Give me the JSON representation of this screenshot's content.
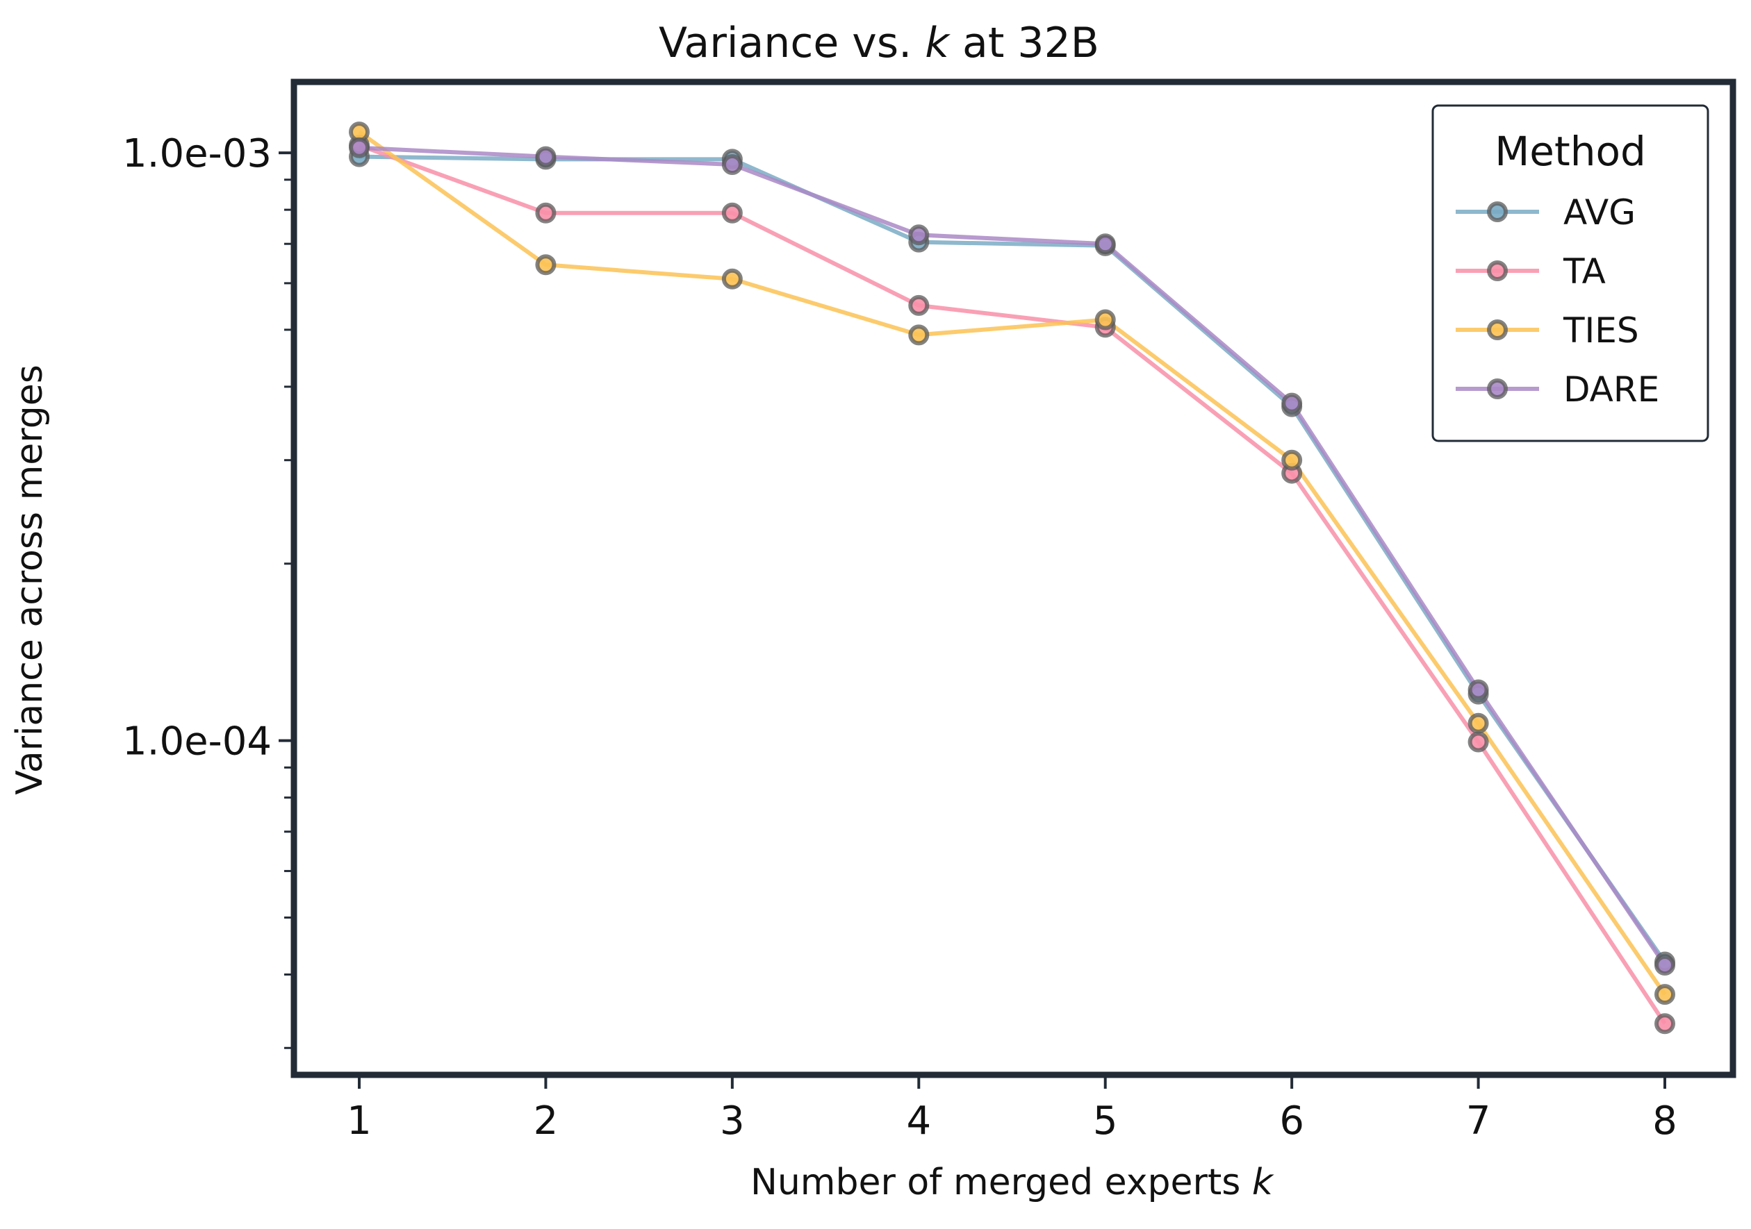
{
  "chart_data": {
    "type": "line",
    "title_prefix": "Variance vs. ",
    "title_var": "k",
    "title_suffix": " at 32B",
    "xlabel_prefix": "Number of merged experts ",
    "xlabel_var": "k",
    "ylabel": "Variance across merges",
    "x": [
      1,
      2,
      3,
      4,
      5,
      6,
      7,
      8
    ],
    "x_tick_labels": [
      "1",
      "2",
      "3",
      "4",
      "5",
      "6",
      "7",
      "8"
    ],
    "y_scale": "log",
    "ylim": [
      2.7e-05,
      0.00132
    ],
    "y_major_ticks": [
      0.0001,
      0.001
    ],
    "y_major_tick_labels": [
      "1.0e-04",
      "1.0e-03"
    ],
    "y_minor_ticks": [
      3e-05,
      4e-05,
      5e-05,
      6e-05,
      7e-05,
      8e-05,
      9e-05,
      0.0002,
      0.0003,
      0.0004,
      0.0005,
      0.0006,
      0.0007,
      0.0008,
      0.0009
    ],
    "grid": false,
    "legend": {
      "title": "Method",
      "position": "top-right"
    },
    "series": [
      {
        "name": "AVG",
        "color": "#7aabc4",
        "values": [
          0.000985,
          0.000975,
          0.000975,
          0.000705,
          0.000695,
          0.00037,
          0.00012,
          4.2e-05
        ]
      },
      {
        "name": "TA",
        "color": "#f88fa8",
        "values": [
          0.00103,
          0.00079,
          0.00079,
          0.00055,
          0.000505,
          0.000285,
          9.95e-05,
          3.3e-05
        ]
      },
      {
        "name": "TIES",
        "color": "#fcc254",
        "values": [
          0.001085,
          0.000645,
          0.00061,
          0.00049,
          0.00052,
          0.0003,
          0.000107,
          3.7e-05
        ]
      },
      {
        "name": "DARE",
        "color": "#aa88c6",
        "values": [
          0.00102,
          0.000985,
          0.000955,
          0.000725,
          0.0007,
          0.000375,
          0.000122,
          4.15e-05
        ]
      }
    ]
  }
}
